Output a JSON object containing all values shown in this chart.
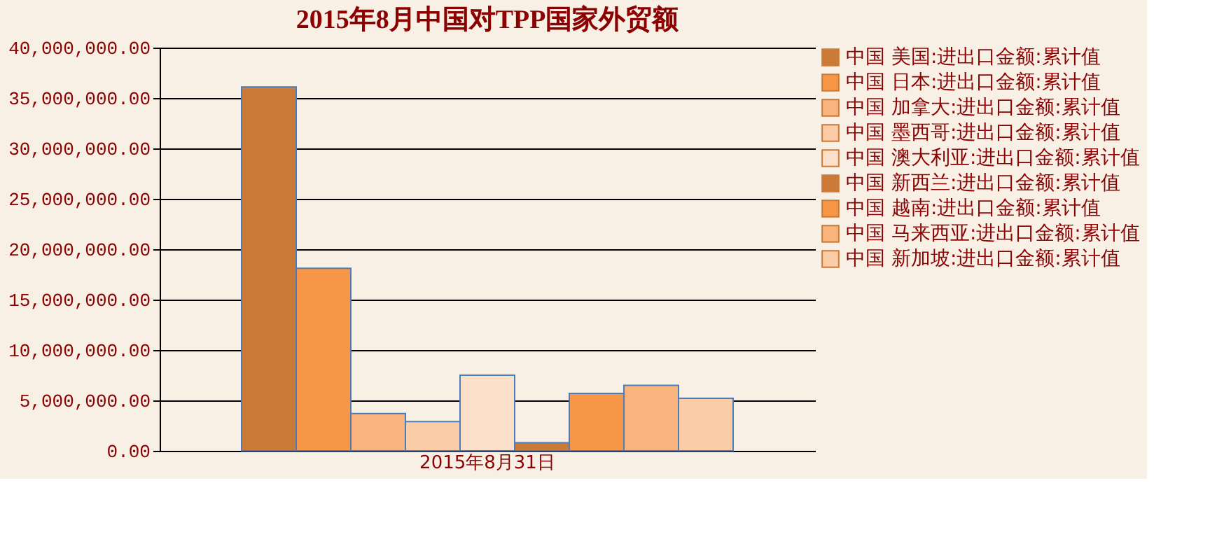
{
  "chart_data": {
    "type": "bar",
    "title": "2015年8月中国对TPP国家外贸额",
    "categories": [
      "2015年8月31日"
    ],
    "series": [
      {
        "name": "中国 美国:进出口金额:累计值",
        "color": "#cc7a38",
        "values": [
          36100000
        ]
      },
      {
        "name": "中国 日本:进出口金额:累计值",
        "color": "#f79646",
        "values": [
          18100000
        ]
      },
      {
        "name": "中国 加拿大:进出口金额:累计值",
        "color": "#f9b47e",
        "values": [
          3700000
        ]
      },
      {
        "name": "中国 墨西哥:进出口金额:累计值",
        "color": "#fbcca6",
        "values": [
          2900000
        ]
      },
      {
        "name": "中国 澳大利亚:进出口金额:累计值",
        "color": "#fce0ca",
        "values": [
          7500000
        ]
      },
      {
        "name": "中国 新西兰:进出口金额:累计值",
        "color": "#cc7a38",
        "values": [
          800000
        ]
      },
      {
        "name": "中国 越南:进出口金额:累计值",
        "color": "#f79646",
        "values": [
          5700000
        ]
      },
      {
        "name": "中国 马来西亚:进出口金额:累计值",
        "color": "#f9b47e",
        "values": [
          6500000
        ]
      },
      {
        "name": "中国 新加坡:进出口金额:累计值",
        "color": "#fbcca6",
        "values": [
          5200000
        ]
      }
    ],
    "ylim": [
      0,
      40000000
    ],
    "yticks": [
      {
        "value": 0,
        "label": "0.00"
      },
      {
        "value": 5000000,
        "label": "5,000,000.00"
      },
      {
        "value": 10000000,
        "label": "10,000,000.00"
      },
      {
        "value": 15000000,
        "label": "15,000,000.00"
      },
      {
        "value": 20000000,
        "label": "20,000,000.00"
      },
      {
        "value": 25000000,
        "label": "25,000,000.00"
      },
      {
        "value": 30000000,
        "label": "30,000,000.00"
      },
      {
        "value": 35000000,
        "label": "35,000,000.00"
      },
      {
        "value": 40000000,
        "label": "40,000,000.00"
      }
    ],
    "grid": "y",
    "legend": "right"
  }
}
